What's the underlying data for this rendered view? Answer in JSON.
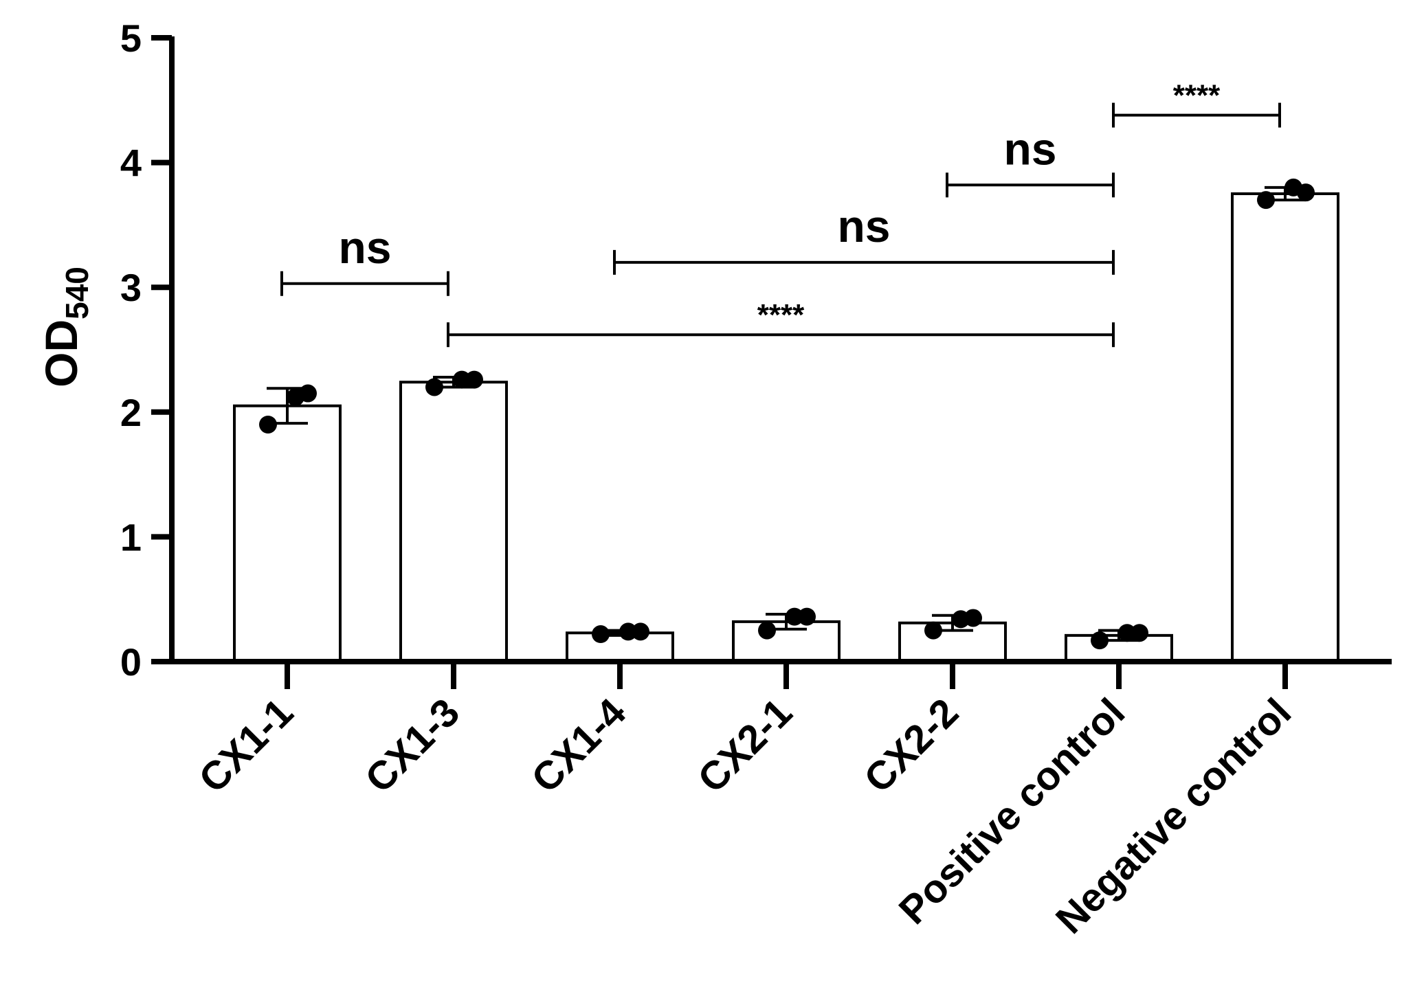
{
  "chart_data": {
    "type": "bar",
    "title": "",
    "xlabel": "",
    "ylabel": "OD",
    "ylabel_subscript": "540",
    "ylim": [
      0,
      5
    ],
    "yticks": [
      0,
      1,
      2,
      3,
      4,
      5
    ],
    "grid": false,
    "categories": [
      "CX1-1",
      "CX1-3",
      "CX1-4",
      "CX2-1",
      "CX2-2",
      "Positive control",
      "Negative control"
    ],
    "values": [
      2.05,
      2.24,
      0.23,
      0.32,
      0.31,
      0.21,
      3.75
    ],
    "error": [
      0.14,
      0.04,
      0.02,
      0.06,
      0.06,
      0.04,
      0.05
    ],
    "points": [
      [
        1.9,
        2.12,
        2.15
      ],
      [
        2.2,
        2.26,
        2.26
      ],
      [
        0.22,
        0.24,
        0.24
      ],
      [
        0.25,
        0.36,
        0.36
      ],
      [
        0.25,
        0.34,
        0.35
      ],
      [
        0.17,
        0.23,
        0.23
      ],
      [
        3.7,
        3.8,
        3.76
      ]
    ],
    "significance": [
      {
        "from": 0,
        "to": 1,
        "y": 3.03,
        "label": "ns"
      },
      {
        "from": 1,
        "to": 5,
        "y": 2.62,
        "label": "****"
      },
      {
        "from": 2,
        "to": 5,
        "y": 3.2,
        "label": "ns"
      },
      {
        "from": 4,
        "to": 5,
        "y": 3.82,
        "label": "ns"
      },
      {
        "from": 5,
        "to": 6,
        "y": 4.38,
        "label": "****"
      }
    ]
  }
}
